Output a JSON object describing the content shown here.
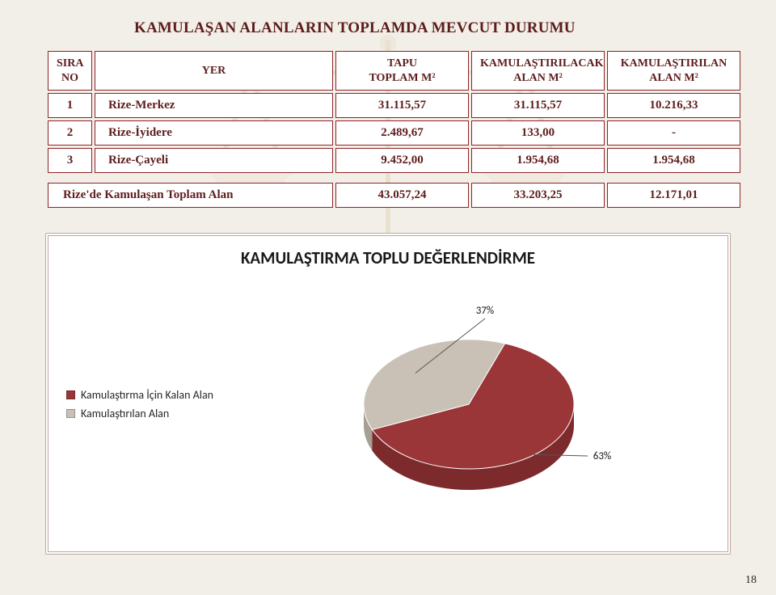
{
  "title": "KAMULAŞAN ALANLARIN TOPLAMDA MEVCUT DURUMU",
  "table": {
    "columns": [
      {
        "key": "no",
        "lines": [
          "SIRA",
          "NO"
        ]
      },
      {
        "key": "yer",
        "lines": [
          "YER"
        ]
      },
      {
        "key": "tapu",
        "lines": [
          "TAPU",
          "TOPLAM M²"
        ]
      },
      {
        "key": "kcak",
        "lines": [
          "KAMULAŞTIRILACAK",
          "ALAN M²"
        ]
      },
      {
        "key": "klan",
        "lines": [
          "KAMULAŞTIRILAN",
          "ALAN M²"
        ]
      }
    ],
    "rows": [
      {
        "no": "1",
        "yer": "Rize-Merkez",
        "tapu": "31.115,57",
        "kcak": "31.115,57",
        "klan": "10.216,33"
      },
      {
        "no": "2",
        "yer": "Rize-İyidere",
        "tapu": "2.489,67",
        "kcak": "133,00",
        "klan": "-"
      },
      {
        "no": "3",
        "yer": "Rize-Çayeli",
        "tapu": "9.452,00",
        "kcak": "1.954,68",
        "klan": "1.954,68"
      }
    ],
    "total": {
      "label": "Rize'de Kamulaşan Toplam Alan",
      "tapu": "43.057,24",
      "kcak": "33.203,25",
      "klan": "12.171,01"
    }
  },
  "chart": {
    "title": "KAMULAŞTIRMA TOPLU DEĞERLENDİRME",
    "type": "pie",
    "slices": [
      {
        "label": "Kamulaştırma İçin Kalan Alan",
        "pct": 63,
        "label_text": "63%",
        "color_top": "#9a3638",
        "color_bot": "#7d2a2c"
      },
      {
        "label": "Kamulaştırılan Alan",
        "pct": 37,
        "label_text": "37%",
        "color_top": "#c9c1b6",
        "color_bot": "#a79f93"
      }
    ],
    "label_fontsize": 13,
    "label_color": "#1a1a1a",
    "background_color": "#ffffff"
  },
  "page_number": "18"
}
